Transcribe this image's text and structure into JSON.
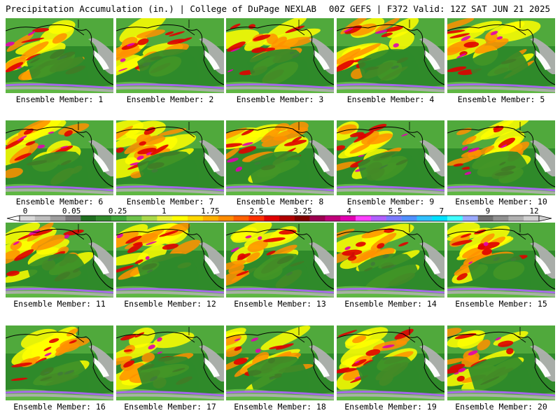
{
  "header": {
    "left_title": "Precipitation Accumulation (in.) | College of DuPage NEXLAB",
    "right_title": "00Z GEFS | F372 Valid: 12Z SAT JUN 21 2025"
  },
  "member_label_prefix": "Ensemble Member: ",
  "members": [
    {
      "number": "1"
    },
    {
      "number": "2"
    },
    {
      "number": "3"
    },
    {
      "number": "4"
    },
    {
      "number": "5"
    },
    {
      "number": "6"
    },
    {
      "number": "7"
    },
    {
      "number": "8"
    },
    {
      "number": "9"
    },
    {
      "number": "10"
    },
    {
      "number": "11"
    },
    {
      "number": "12"
    },
    {
      "number": "13"
    },
    {
      "number": "14"
    },
    {
      "number": "15"
    },
    {
      "number": "16"
    },
    {
      "number": "17"
    },
    {
      "number": "18"
    },
    {
      "number": "19"
    },
    {
      "number": "20"
    }
  ],
  "colorbar": {
    "tick_labels": [
      "0",
      "0.05",
      "0.25",
      "1",
      "1.75",
      "2.5",
      "3.25",
      "4",
      "5.5",
      "7",
      "9",
      "12"
    ],
    "colors": [
      "#d9d9d9",
      "#bdbdbd",
      "#9e9e9e",
      "#7a7a7a",
      "#1f6e1f",
      "#2f8a2a",
      "#3fa63a",
      "#6cc24a",
      "#a8d84a",
      "#e6ef3a",
      "#ffff00",
      "#ffd700",
      "#ffb000",
      "#ff8c00",
      "#ff6000",
      "#ff3000",
      "#e00000",
      "#b00000",
      "#800000",
      "#9b0050",
      "#c0007a",
      "#e000b0",
      "#ff40ff",
      "#b060ff",
      "#7a7aff",
      "#5090ff",
      "#30c0ff",
      "#00e0ff",
      "#40ffff",
      "#9aa9ff",
      "#707070",
      "#909090",
      "#b0b0b0",
      "#d0d0d0"
    ]
  },
  "map_colors": {
    "ocean_green": "#2f8a2a",
    "light_green": "#6cc24a",
    "yellow": "#ffff00",
    "orange": "#ff9000",
    "red": "#e00000",
    "magenta": "#e000b0",
    "purple": "#b060ff",
    "gray": "#b0b0b0",
    "white": "#ffffff",
    "coast": "#000000"
  }
}
